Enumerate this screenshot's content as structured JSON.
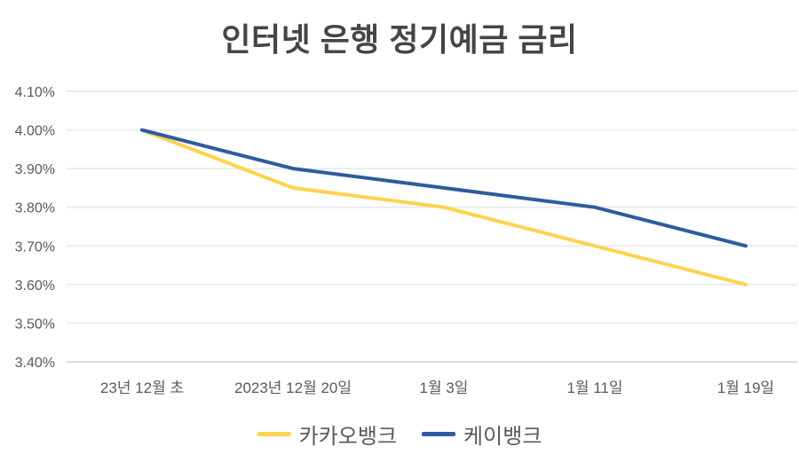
{
  "title": "인터넷 은행 정기예금 금리",
  "colors": {
    "kakao_yellow": "#FFD24F",
    "kbank_blue": "#2E5B9D",
    "gridline": "#ECECEC",
    "axis_line": "#D9D9D9",
    "axis_text": "#595959",
    "title_text": "#454545"
  },
  "chart_data": {
    "type": "line",
    "title": "인터넷 은행 정기예금 금리",
    "categories": [
      "23년 12월 초",
      "2023년 12월 20일",
      "1월 3일",
      "1월 11일",
      "1월 19일"
    ],
    "series": [
      {
        "name": "카카오뱅크",
        "color_key": "kakao_yellow",
        "values": [
          4.0,
          3.85,
          3.8,
          3.7,
          3.6
        ]
      },
      {
        "name": "케이뱅크",
        "color_key": "kbank_blue",
        "values": [
          4.0,
          3.9,
          3.85,
          3.8,
          3.7
        ]
      }
    ],
    "ylim": [
      3.4,
      4.1
    ],
    "y_tick_step": 0.1,
    "y_tick_labels": [
      "4.10%",
      "4.00%",
      "3.90%",
      "3.80%",
      "3.70%",
      "3.60%",
      "3.50%",
      "3.40%"
    ],
    "y_tick_format": "percent_2dp",
    "xlabel": "",
    "ylabel": "",
    "grid": "horizontal-only",
    "legend_position": "bottom"
  },
  "legend": {
    "items": [
      {
        "label": "카카오뱅크",
        "color_key": "kakao_yellow"
      },
      {
        "label": "케이뱅크",
        "color_key": "kbank_blue"
      }
    ]
  }
}
